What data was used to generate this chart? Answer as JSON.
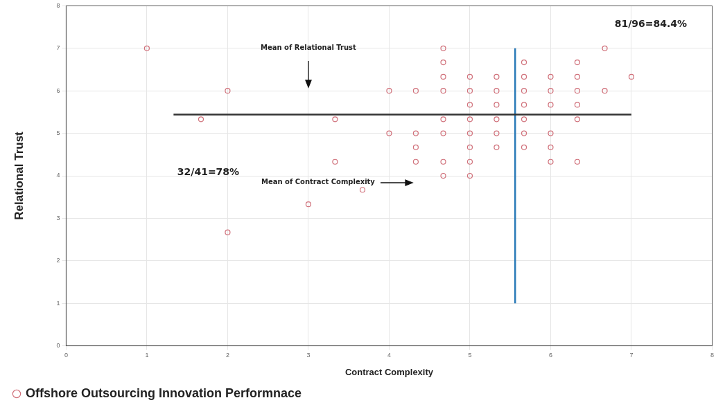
{
  "chart_data": {
    "type": "scatter",
    "xlabel": "Contract Complexity",
    "ylabel": "Relational Trust",
    "xlim": [
      0,
      8
    ],
    "ylim": [
      0,
      8
    ],
    "xticks": [
      0,
      1,
      2,
      3,
      4,
      5,
      6,
      7,
      8
    ],
    "yticks": [
      0,
      1,
      2,
      3,
      4,
      5,
      6,
      7,
      8
    ],
    "grid": true,
    "legend": "bottom left",
    "marker": "circle",
    "series": [
      {
        "name": "Offshore Outsourcing Innovation Performnace",
        "color": "#d0707a",
        "x": [
          1,
          1.67,
          2,
          2,
          3,
          3.33,
          3.33,
          3.67,
          4,
          4,
          4.33,
          4.33,
          4.33,
          4.33,
          4.67,
          4.67,
          4.67,
          4.67,
          4.67,
          4.67,
          4.67,
          4.67,
          5,
          5,
          5,
          5,
          5,
          5,
          5,
          5,
          5.33,
          5.33,
          5.33,
          5.33,
          5.33,
          5.33,
          5.67,
          5.67,
          5.67,
          5.67,
          5.67,
          5.67,
          5.67,
          6,
          6,
          6,
          6,
          6,
          6,
          6.33,
          6.33,
          6.33,
          6.33,
          6.33,
          6.33,
          6.67,
          6.67,
          7
        ],
        "values": [
          7,
          5.33,
          6,
          2.67,
          3.33,
          5.33,
          4.33,
          3.67,
          6,
          5,
          6,
          5,
          4.67,
          4.33,
          7,
          6.67,
          6.33,
          6,
          5.33,
          5,
          4.33,
          4,
          6.33,
          6,
          5.67,
          5.33,
          5,
          4.67,
          4.33,
          4,
          6.33,
          6,
          5.67,
          5.33,
          5,
          4.67,
          6.67,
          6.33,
          6,
          5.67,
          5.33,
          5,
          4.67,
          6.33,
          6,
          5.67,
          5,
          4.67,
          4.33,
          6.67,
          6.33,
          6,
          5.67,
          5.33,
          4.33,
          7,
          6,
          6.33
        ]
      },
      {
        "type": "line",
        "marker": "none",
        "color": "#333333",
        "x": [
          1.33,
          7
        ],
        "values": [
          5.44,
          5.44
        ]
      },
      {
        "type": "line",
        "marker": "none",
        "color": "#2a7ab8",
        "x": [
          5.56,
          5.56
        ],
        "values": [
          1,
          7
        ]
      }
    ],
    "annotations": [
      "81/96=84.4%",
      "32/41=78%",
      "Mean of Relational Trust",
      "Mean of Contract Complexity"
    ]
  }
}
